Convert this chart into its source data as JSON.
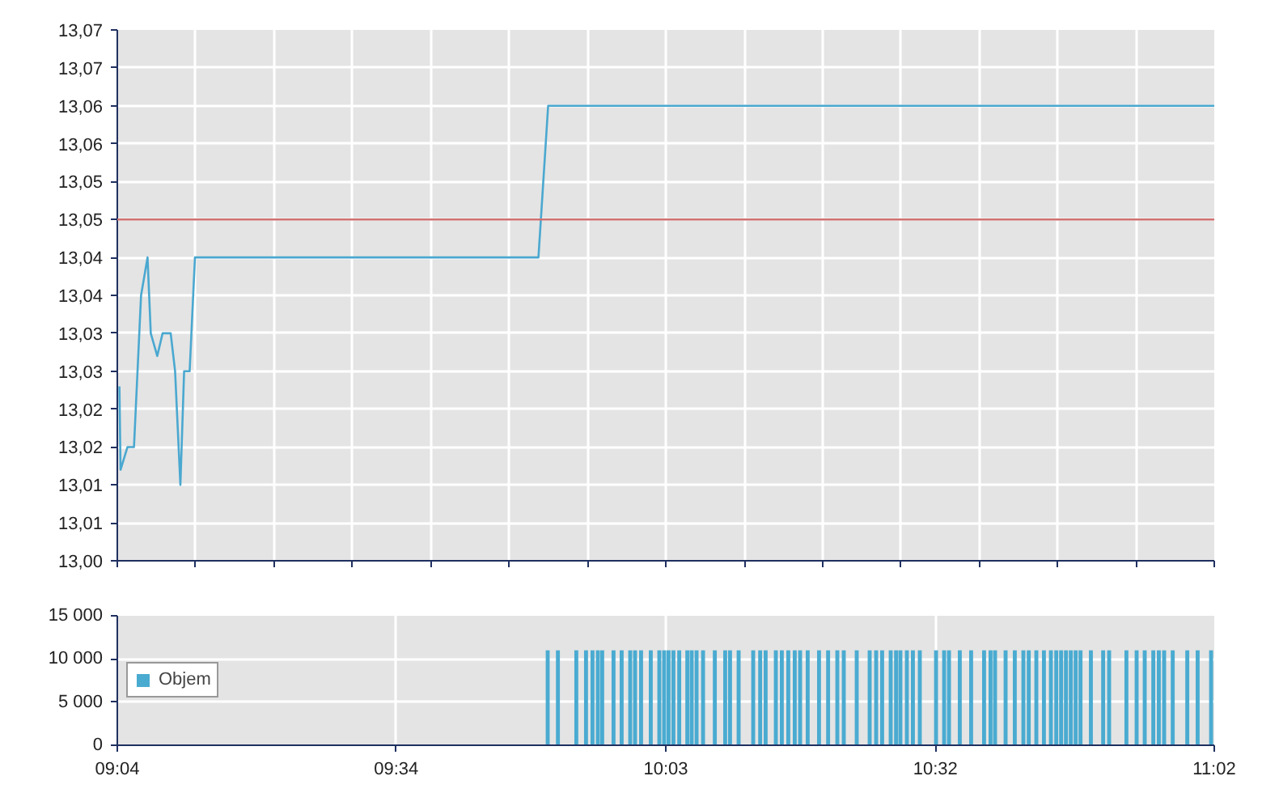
{
  "chart_data": [
    {
      "type": "line",
      "xlim": [
        9.0667,
        11.0333
      ],
      "ylim": [
        13.0,
        13.07
      ],
      "xticks": [
        {
          "value": 9.0667,
          "label": null
        },
        {
          "value": 9.2072,
          "label": null
        },
        {
          "value": 9.3476,
          "label": null
        },
        {
          "value": 9.4881,
          "label": null
        },
        {
          "value": 9.6286,
          "label": null
        },
        {
          "value": 9.7691,
          "label": null
        },
        {
          "value": 9.9095,
          "label": null
        },
        {
          "value": 10.05,
          "label": null
        },
        {
          "value": 10.191,
          "label": null
        },
        {
          "value": 10.331,
          "label": null
        },
        {
          "value": 10.4714,
          "label": null
        },
        {
          "value": 10.6119,
          "label": null
        },
        {
          "value": 10.7524,
          "label": null
        },
        {
          "value": 10.8929,
          "label": null
        },
        {
          "value": 11.0333,
          "label": null
        }
      ],
      "yticks": [
        {
          "value": 13.0,
          "label": "13,00"
        },
        {
          "value": 13.005,
          "label": "13,01"
        },
        {
          "value": 13.01,
          "label": "13,01"
        },
        {
          "value": 13.015,
          "label": "13,02"
        },
        {
          "value": 13.02,
          "label": "13,02"
        },
        {
          "value": 13.025,
          "label": "13,03"
        },
        {
          "value": 13.03,
          "label": "13,03"
        },
        {
          "value": 13.035,
          "label": "13,04"
        },
        {
          "value": 13.04,
          "label": "13,04"
        },
        {
          "value": 13.045,
          "label": "13,05"
        },
        {
          "value": 13.05,
          "label": "13,05"
        },
        {
          "value": 13.055,
          "label": "13,06"
        },
        {
          "value": 13.06,
          "label": "13,06"
        },
        {
          "value": 13.065,
          "label": "13,07"
        },
        {
          "value": 13.07,
          "label": "13,07"
        }
      ],
      "series": [
        {
          "color": "#4aa8d0",
          "x": [
            9.0705,
            9.0725,
            9.085,
            9.0966,
            9.1093,
            9.1209,
            9.1267,
            9.1383,
            9.1479,
            9.1624,
            9.1703,
            9.1798,
            9.1865,
            9.1964,
            9.2059,
            9.8217,
            9.8391,
            11.0333
          ],
          "values": [
            13.023,
            13.012,
            13.015,
            13.015,
            13.035,
            13.04,
            13.03,
            13.027,
            13.03,
            13.03,
            13.025,
            13.01,
            13.025,
            13.025,
            13.04,
            13.04,
            13.06,
            13.06
          ]
        }
      ],
      "ref_lines": [
        {
          "axis": "y",
          "value": 13.045,
          "color": "#d07070"
        }
      ],
      "grid": true,
      "tick_labels": "y"
    },
    {
      "type": "bar",
      "xlim": [
        9.0667,
        11.0333
      ],
      "ylim": [
        0,
        15000
      ],
      "xticks": [
        {
          "value": 9.0667,
          "label": "09:04"
        },
        {
          "value": 9.5667,
          "label": "09:34"
        },
        {
          "value": 10.05,
          "label": "10:03"
        },
        {
          "value": 10.5333,
          "label": "10:32"
        },
        {
          "value": 11.0333,
          "label": "11:02"
        }
      ],
      "yticks": [
        0,
        {
          "value": 5000,
          "label": "5 000"
        },
        {
          "value": 10000,
          "label": "10 000"
        },
        {
          "value": 15000,
          "label": "15 000"
        }
      ],
      "x": [
        9.8383,
        9.8566,
        9.8896,
        9.907,
        9.9186,
        9.9282,
        9.936,
        9.9563,
        9.9709,
        9.9862,
        9.9949,
        10.0057,
        10.0231,
        10.0384,
        10.0471,
        10.055,
        10.0637,
        10.0741,
        10.0886,
        10.0964,
        10.1052,
        10.1168,
        10.1379,
        10.1565,
        10.1652,
        10.1806,
        10.2067,
        10.2192,
        10.229,
        10.2473,
        10.258,
        10.2696,
        10.2812,
        10.2908,
        10.3044,
        10.3247,
        10.341,
        10.3575,
        10.3691,
        10.3923,
        10.4155,
        10.4271,
        10.4379,
        10.4532,
        10.4628,
        10.4706,
        10.4822,
        10.493,
        10.5054,
        10.5345,
        10.549,
        10.5577,
        10.5771,
        10.5974,
        10.6206,
        10.6322,
        10.6403,
        10.6592,
        10.6757,
        10.6911,
        10.7007,
        10.7143,
        10.7279,
        10.7404,
        10.75,
        10.7587,
        10.7674,
        10.7761,
        10.7848,
        10.7935,
        10.8121,
        10.8341,
        10.8448,
        10.8758,
        10.8941,
        10.9086,
        10.924,
        10.9339,
        10.9434,
        10.9588,
        10.9849,
        11.0035,
        11.0276
      ],
      "series": [
        {
          "name": "Objem",
          "color": "#4aabd1",
          "values": [
            11000,
            11000,
            11000,
            11000,
            11000,
            11000,
            11000,
            11000,
            11000,
            11000,
            11000,
            11000,
            11000,
            11000,
            11000,
            11000,
            11000,
            11000,
            11000,
            11000,
            11000,
            11000,
            11000,
            11000,
            11000,
            11000,
            11000,
            11000,
            11000,
            11000,
            11000,
            11000,
            11000,
            11000,
            11000,
            11000,
            11000,
            11000,
            11000,
            11000,
            11000,
            11000,
            11000,
            11000,
            11000,
            11000,
            11000,
            11000,
            11000,
            11000,
            11000,
            11000,
            11000,
            11000,
            11000,
            11000,
            11000,
            11000,
            11000,
            11000,
            11000,
            11000,
            11000,
            11000,
            11000,
            11000,
            11000,
            11000,
            11000,
            11000,
            11000,
            11000,
            11000,
            11000,
            11000,
            11000,
            11000,
            11000,
            11000,
            11000,
            11000,
            11000,
            11000
          ]
        }
      ],
      "grid": true,
      "legend": "left"
    }
  ]
}
